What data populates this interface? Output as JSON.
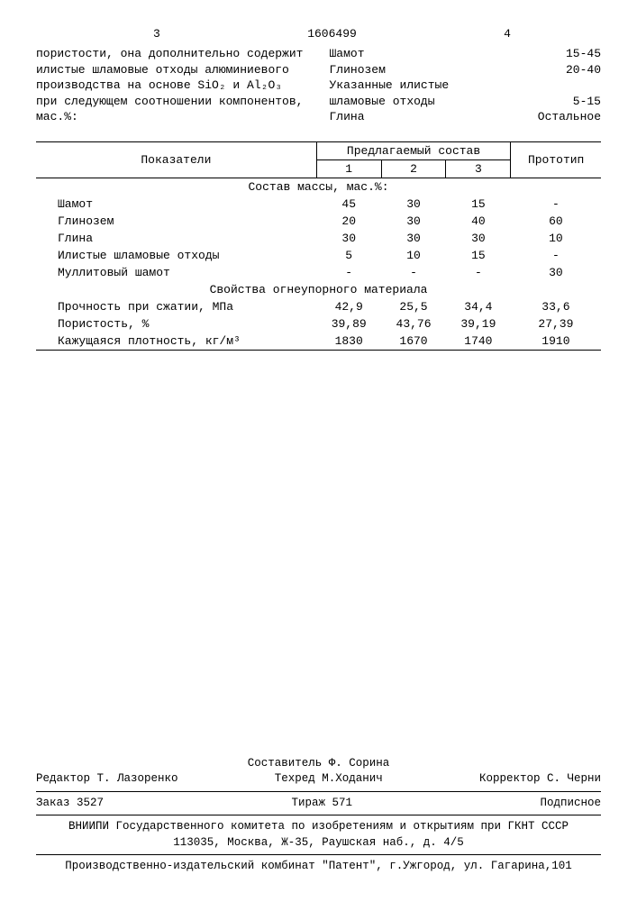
{
  "header": {
    "left_page": "3",
    "doc_number": "1606499",
    "right_page": "4"
  },
  "intro": {
    "left": "пористости, она дополнительно содержит илистые шламовые отходы алюминиевого производства на основе SiO₂ и Al₂O₃ при следующем соотношении компонентов, мас.%:",
    "specs": [
      {
        "name": "Шамот",
        "range": "15-45"
      },
      {
        "name": "Глинозем",
        "range": "20-40"
      },
      {
        "name": "Указанные илистые",
        "range": ""
      },
      {
        "name": "шламовые отходы",
        "range": "5-15"
      },
      {
        "name": "Глина",
        "range": "Остальное"
      }
    ]
  },
  "table": {
    "head": {
      "indicators": "Показатели",
      "proposed": "Предлагаемый состав",
      "prototype": "Прототип",
      "cols": [
        "1",
        "2",
        "3"
      ]
    },
    "section1": "Состав массы, мас.%:",
    "rows1": [
      {
        "label": "Шамот",
        "v": [
          "45",
          "30",
          "15",
          "-"
        ]
      },
      {
        "label": "Глинозем",
        "v": [
          "20",
          "30",
          "40",
          "60"
        ]
      },
      {
        "label": "Глина",
        "v": [
          "30",
          "30",
          "30",
          "10"
        ]
      },
      {
        "label": "Илистые шламовые отходы",
        "v": [
          "5",
          "10",
          "15",
          "-"
        ]
      },
      {
        "label": "Муллитовый шамот",
        "v": [
          "-",
          "-",
          "-",
          "30"
        ]
      }
    ],
    "section2": "Свойства огнеупорного материала",
    "rows2": [
      {
        "label": "Прочность при сжатии, МПа",
        "v": [
          "42,9",
          "25,5",
          "34,4",
          "33,6"
        ]
      },
      {
        "label": "Пористость, %",
        "v": [
          "39,89",
          "43,76",
          "39,19",
          "27,39"
        ]
      },
      {
        "label": "Кажущаяся плотность, кг/м³",
        "v": [
          "1830",
          "1670",
          "1740",
          "1910"
        ]
      }
    ]
  },
  "footer": {
    "compiler": "Составитель Ф. Сорина",
    "editor": "Редактор Т. Лазоренко",
    "techred": "Техред М.Ходанич",
    "corrector": "Корректор С. Черни",
    "order": "Заказ 3527",
    "tirazh": "Тираж 571",
    "sub": "Подписное",
    "org1": "ВНИИПИ Государственного комитета по изобретениям и открытиям при ГКНТ СССР",
    "addr1": "113035, Москва, Ж-35, Раушская наб., д. 4/5",
    "org2": "Производственно-издательский комбинат \"Патент\", г.Ужгород, ул. Гагарина,101"
  },
  "style": {
    "font_family": "Courier New",
    "font_size_pt": 10,
    "text_color": "#000000",
    "background_color": "#ffffff",
    "rule_color": "#000000"
  }
}
